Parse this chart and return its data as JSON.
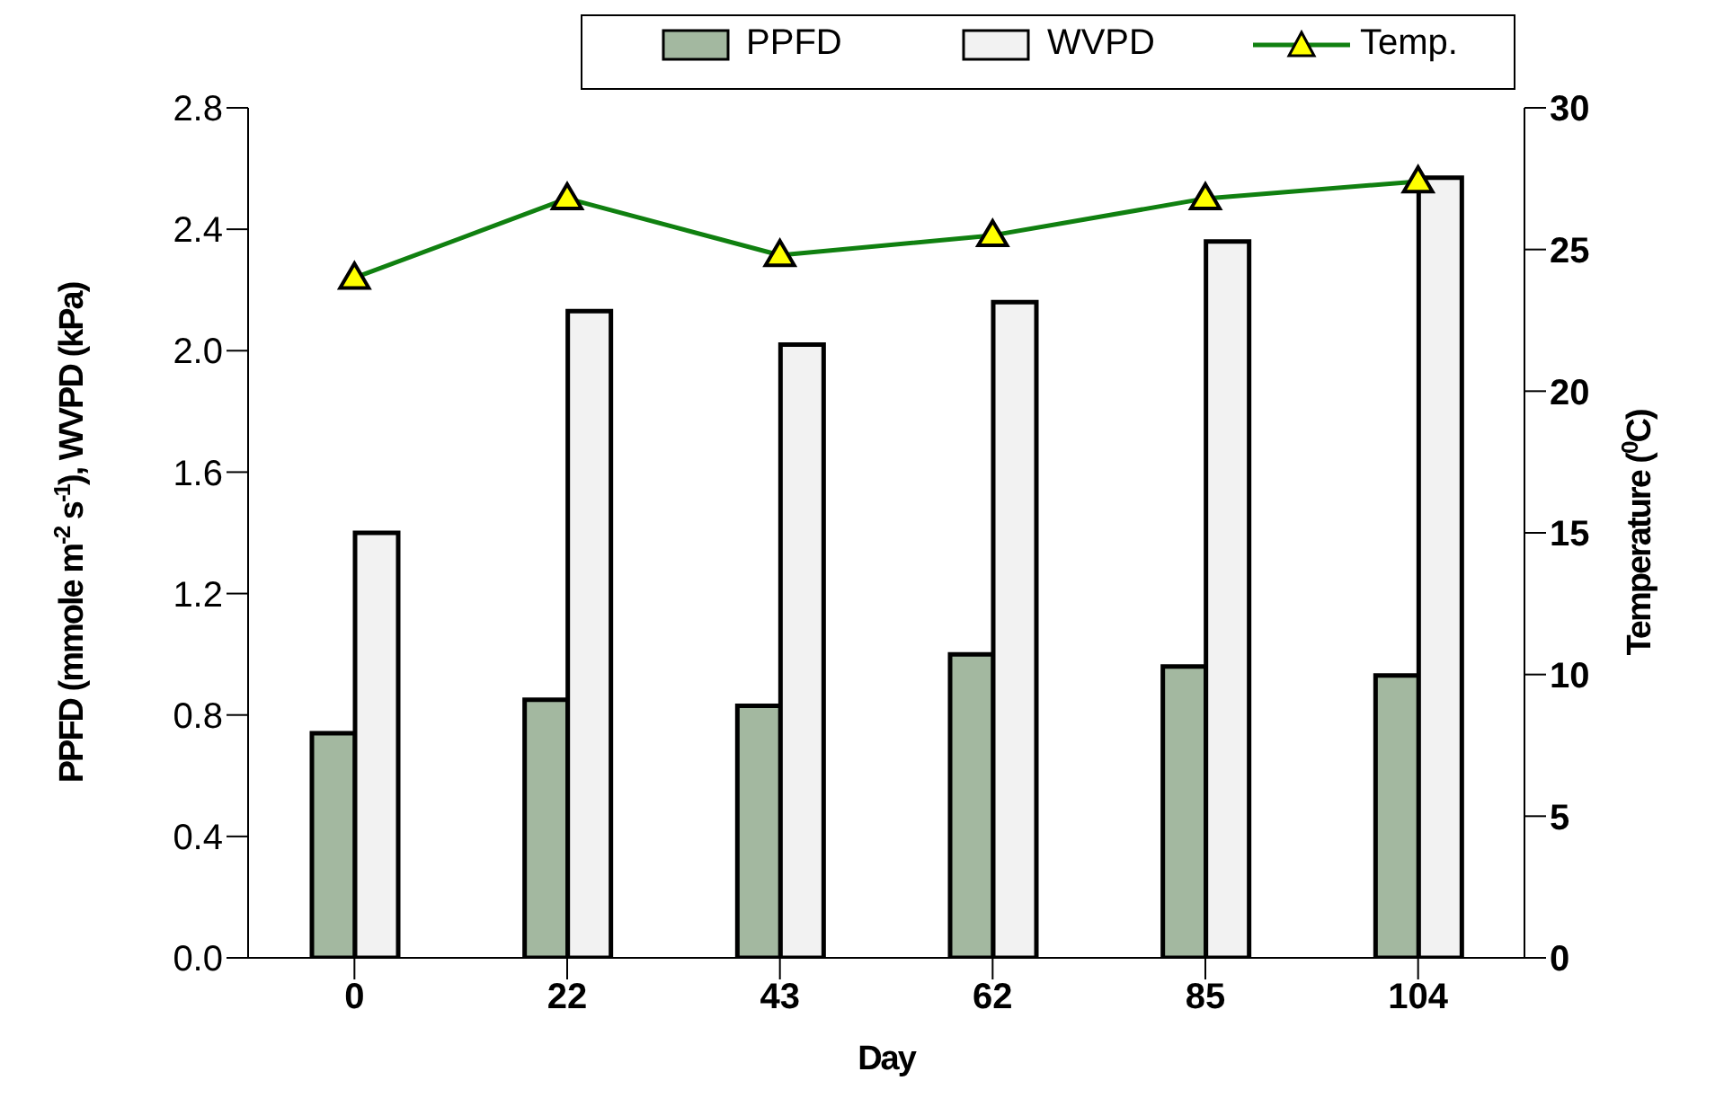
{
  "chart_data": {
    "type": "bar",
    "xlabel": "Day",
    "ylabel": "PPFD (mmole m$^{-2}$ s$^{-1}$), WVPD (kPa)",
    "y2label": "Temperature ($^{0}$C)",
    "categories": [
      "0",
      "22",
      "43",
      "62",
      "85",
      "104"
    ],
    "series": [
      {
        "name": "PPFD",
        "color": "#a3b8a0",
        "values": [
          0.74,
          0.85,
          0.83,
          1.0,
          0.96,
          0.93
        ]
      },
      {
        "name": "WVPD",
        "color": "#f2f2f2",
        "values": [
          1.4,
          2.13,
          2.02,
          2.16,
          2.36,
          2.57
        ]
      },
      {
        "name": "Temp.",
        "type": "line",
        "axis": "y2",
        "color": "#108010",
        "marker": "triangle",
        "values": [
          24.0,
          26.8,
          24.8,
          25.5,
          26.8,
          27.4
        ]
      }
    ],
    "ylim": [
      0,
      2.8
    ],
    "yticks": [
      {
        "value": 0,
        "label": "0.0"
      },
      0.4,
      0.8,
      1.2,
      1.6,
      {
        "value": 2,
        "label": "2.0"
      },
      2.4,
      2.8
    ],
    "y2lim": [
      0,
      30
    ],
    "y2ticks": [
      0,
      5,
      10,
      15,
      20,
      25,
      30
    ],
    "legend": "top"
  }
}
